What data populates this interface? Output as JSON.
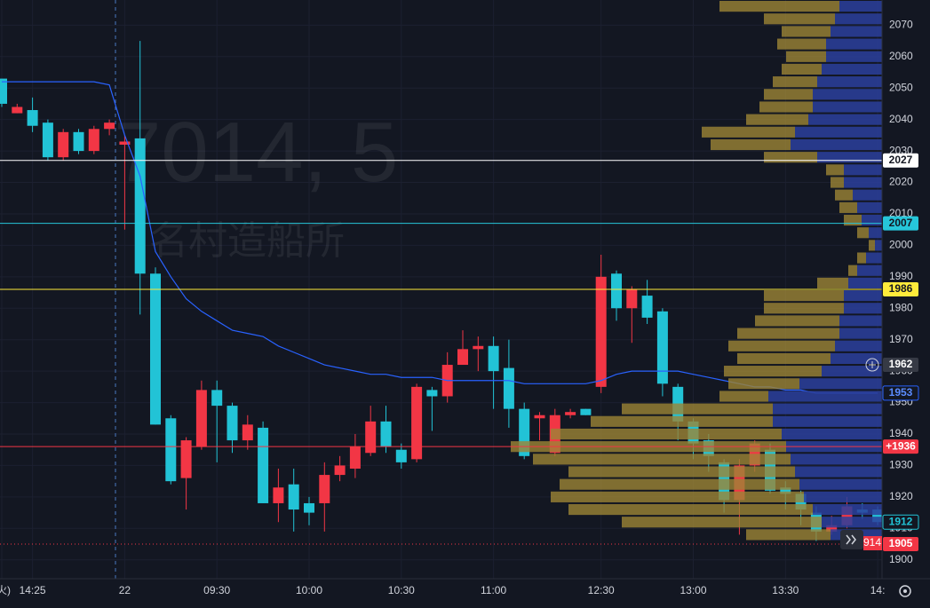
{
  "chart_data": {
    "type": "candlestick",
    "watermark": {
      "symbol": "7014, 5",
      "name": "名村造船所"
    },
    "categories": [
      "(火)",
      null,
      "14:25",
      null,
      null,
      null,
      null,
      null,
      "22",
      null,
      null,
      null,
      null,
      null,
      "09:30",
      null,
      null,
      null,
      null,
      null,
      "10:00",
      null,
      null,
      null,
      null,
      null,
      "10:30",
      null,
      null,
      null,
      null,
      null,
      "11:00",
      null,
      null,
      null,
      null,
      null,
      null,
      "12:30",
      null,
      null,
      null,
      null,
      null,
      "13:00",
      null,
      null,
      null,
      null,
      null,
      "13:30",
      null,
      null,
      null,
      null,
      null,
      "14:"
    ],
    "open": [
      2053,
      2042,
      2043,
      2039,
      2028,
      2036,
      2030,
      2037,
      2032,
      2034,
      1991,
      1945,
      1926,
      1936,
      1954,
      1949,
      1938,
      1942,
      1918,
      1924,
      1918,
      1918,
      1927,
      1929,
      1934,
      1944,
      1935,
      1932,
      1954,
      1952,
      1962,
      1967,
      1968,
      1961,
      1948,
      1945,
      1934,
      1946,
      1948,
      1955,
      1991,
      1980,
      1984,
      1979,
      1955,
      1944,
      1938,
      1931,
      1919,
      1930,
      1935,
      1923,
      1921,
      1915,
      1909,
      1911,
      1916,
      1916
    ],
    "high": [
      2053,
      2045,
      2047,
      2040,
      2037,
      2037,
      2038,
      2040,
      2035,
      2065,
      1993,
      1946,
      1939,
      1957,
      1957,
      1950,
      1946,
      1944,
      1929,
      1929,
      1920,
      1931,
      1933,
      1940,
      1949,
      1949,
      1937,
      1956,
      1955,
      1966,
      1973,
      1971,
      1971,
      1970,
      1950,
      1947,
      1948,
      1948,
      1948,
      1997,
      1992,
      1987,
      1989,
      1980,
      1956,
      1945,
      1940,
      1932,
      1932,
      1938,
      1937,
      1925,
      1922,
      1917,
      1914,
      1920,
      1918,
      1917
    ],
    "low": [
      2044,
      2042,
      2036,
      2027,
      2027,
      2029,
      2029,
      2035,
      2005,
      1978,
      1943,
      1924,
      1916,
      1935,
      1931,
      1934,
      1935,
      1918,
      1912,
      1909,
      1911,
      1909,
      1925,
      1926,
      1933,
      1934,
      1929,
      1931,
      1941,
      1950,
      1962,
      1960,
      1948,
      1942,
      1932,
      1938,
      1933,
      1945,
      1946,
      1953,
      1976,
      1969,
      1975,
      1952,
      1938,
      1932,
      1928,
      1915,
      1908,
      1928,
      1921,
      1916,
      1911,
      1906,
      1908,
      1910,
      1913,
      1911
    ],
    "close": [
      2045,
      2044,
      2038,
      2028,
      2036,
      2030,
      2037,
      2039,
      2033,
      1991,
      1943,
      1925,
      1938,
      1954,
      1949,
      1938,
      1943,
      1918,
      1923,
      1916,
      1915,
      1927,
      1930,
      1936,
      1944,
      1936,
      1931,
      1955,
      1952,
      1962,
      1967,
      1968,
      1960,
      1948,
      1933,
      1946,
      1946,
      1947,
      1946,
      1990,
      1980,
      1986,
      1977,
      1956,
      1944,
      1937,
      1933,
      1919,
      1930,
      1937,
      1922,
      1921,
      1916,
      1909,
      1911,
      1917,
      1915,
      1912
    ],
    "up_color": "#f23645",
    "down_color": "#22c3d6",
    "vwap": {
      "color": "#2962ff",
      "values": [
        2052,
        2052,
        2052,
        2052,
        2052,
        2052,
        2052,
        2051,
        2035,
        2022,
        1998,
        1990,
        1983,
        1979,
        1976,
        1973,
        1972,
        1971,
        1968,
        1966,
        1964,
        1962,
        1961,
        1960,
        1959,
        1959,
        1958,
        1958,
        1958,
        1957,
        1957,
        1957,
        1957,
        1957,
        1956,
        1956,
        1956,
        1956,
        1956,
        1957,
        1959,
        1960,
        1960,
        1960,
        1960,
        1959,
        1958,
        1957,
        1956,
        1955,
        1955,
        1954,
        1954,
        1953,
        1953,
        1953,
        1953,
        1953
      ]
    },
    "volume_profile": {
      "prices": [
        2076,
        2072,
        2068,
        2064,
        2060,
        2056,
        2052,
        2048,
        2044,
        2040,
        2036,
        2032,
        2028,
        2024,
        2020,
        2016,
        2012,
        2008,
        2004,
        2000,
        1996,
        1992,
        1988,
        1984,
        1980,
        1976,
        1972,
        1968,
        1964,
        1960,
        1956,
        1952,
        1948,
        1944,
        1940,
        1936,
        1932,
        1928,
        1924,
        1920,
        1916,
        1912,
        1908
      ],
      "blue_color": "#2b3f9c",
      "gold_color": "#9c8536",
      "blue": [
        48,
        53,
        58,
        63,
        63,
        68,
        73,
        78,
        78,
        83,
        98,
        103,
        73,
        43,
        43,
        33,
        28,
        23,
        15,
        8,
        18,
        28,
        38,
        43,
        43,
        48,
        48,
        53,
        58,
        68,
        93,
        128,
        123,
        123,
        113,
        108,
        103,
        98,
        93,
        88,
        78,
        68,
        58
      ],
      "gold": [
        135,
        80,
        55,
        55,
        45,
        45,
        50,
        55,
        60,
        70,
        105,
        90,
        60,
        20,
        15,
        20,
        20,
        20,
        13,
        7,
        10,
        10,
        35,
        90,
        90,
        95,
        115,
        120,
        105,
        110,
        80,
        55,
        170,
        205,
        260,
        310,
        290,
        255,
        270,
        285,
        275,
        225,
        95
      ]
    },
    "price_lines": [
      {
        "value": 2027,
        "color": "#ffffff",
        "text_color": "#131722",
        "style": "solid"
      },
      {
        "value": 2007,
        "color": "#26c6da",
        "text_color": "#131722",
        "style": "solid"
      },
      {
        "value": 1986,
        "color": "#ffeb3b",
        "text_color": "#131722",
        "style": "solid"
      },
      {
        "value": 1962,
        "color": "#363a45",
        "text_color": "#ffffff",
        "style": "crosshair"
      },
      {
        "value": 1953,
        "color": "#2962ff",
        "text_color": "#5b8cff",
        "style": "outline"
      },
      {
        "value": 1936,
        "label": "+1936",
        "color": "#f23645",
        "text_color": "#ffffff",
        "style": "solid"
      },
      {
        "value": 1912,
        "color": "#22c3d6",
        "text_color": "#22c3d6",
        "style": "outline"
      },
      {
        "value": 1905,
        "color": "#f23645",
        "text_color": "#ffffff",
        "style": "dotted"
      }
    ],
    "ylim": [
      1894,
      2078
    ],
    "yticks": [
      1900,
      1910,
      1920,
      1930,
      1940,
      1950,
      1960,
      1970,
      1980,
      1990,
      2000,
      2010,
      2020,
      2030,
      2040,
      2050,
      2060,
      2070
    ],
    "grid": true,
    "partial_label": "914"
  }
}
